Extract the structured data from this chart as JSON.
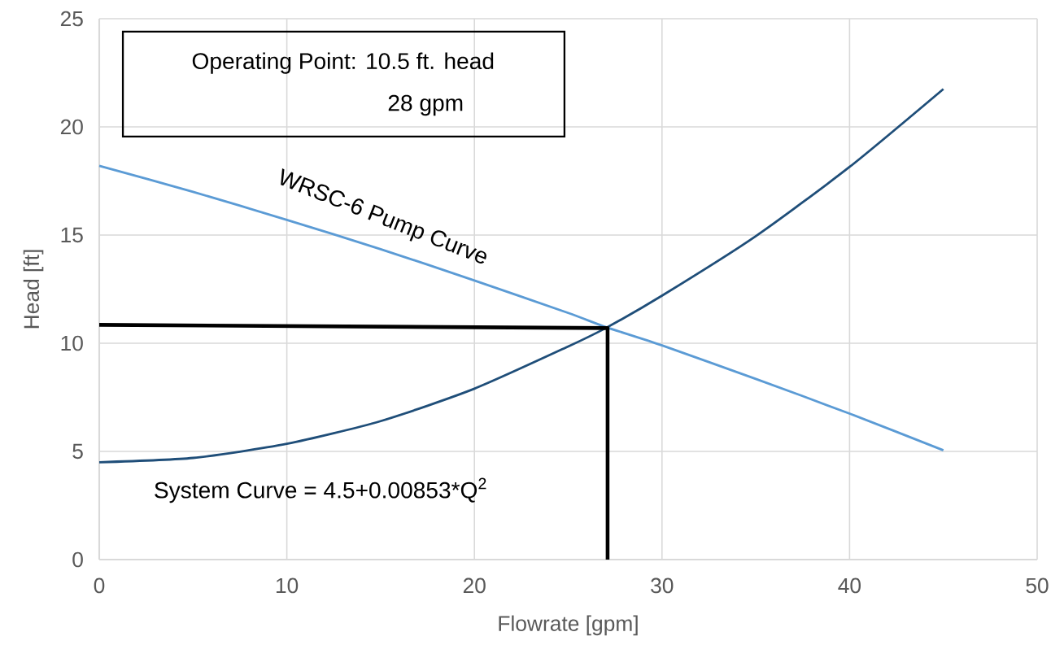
{
  "chart_data": {
    "type": "line",
    "xlabel": "Flowrate [gpm]",
    "ylabel": "Head [ft]",
    "xlim": [
      0,
      50
    ],
    "ylim": [
      0,
      25
    ],
    "xticks": [
      0,
      10,
      20,
      30,
      40,
      50
    ],
    "yticks": [
      0,
      5,
      10,
      15,
      20,
      25
    ],
    "grid": true,
    "series": [
      {
        "name": "WRSC-6 Pump Curve",
        "color": "#5b9bd5",
        "x": [
          0,
          5,
          10,
          15,
          20,
          25,
          27,
          30,
          35,
          40,
          45
        ],
        "values": [
          18.2,
          17.0,
          15.7,
          14.35,
          12.9,
          11.4,
          10.75,
          9.9,
          8.35,
          6.75,
          5.05
        ]
      },
      {
        "name": "System Curve = 4.5+0.00853*Q$^{2}$",
        "color": "#1f4e79",
        "x": [
          0,
          5,
          10,
          15,
          20,
          25,
          27,
          30,
          35,
          40,
          45
        ],
        "values": [
          4.5,
          4.7,
          5.35,
          6.4,
          7.9,
          9.85,
          10.7,
          12.2,
          14.95,
          18.15,
          21.75
        ]
      },
      {
        "color": "#000000",
        "x": [
          0,
          27.1,
          27.1
        ],
        "values": [
          10.85,
          10.7,
          0
        ]
      }
    ],
    "annotations": [
      "Operating Point: 10.5 ft. head",
      "28 gpm"
    ]
  }
}
